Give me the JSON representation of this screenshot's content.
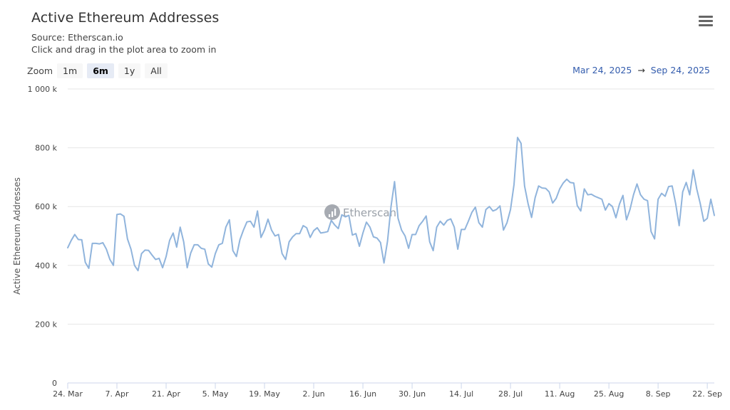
{
  "header": {
    "title": "Active Ethereum Addresses",
    "source": "Source: Etherscan.io",
    "hint": "Click and drag in the plot area to zoom in",
    "menu_icon": "hamburger-menu-icon"
  },
  "zoom": {
    "label": "Zoom",
    "buttons": [
      "1m",
      "6m",
      "1y",
      "All"
    ],
    "selected": "6m"
  },
  "range": {
    "from": "Mar 24, 2025",
    "arrow": "→",
    "to": "Sep 24, 2025"
  },
  "watermark": "Etherscan",
  "chart_data": {
    "type": "line",
    "ylabel": "Active Ethereum Addresses",
    "ylim": [
      0,
      1000000
    ],
    "yticks": [
      {
        "v": 0,
        "label": "0"
      },
      {
        "v": 200000,
        "label": "200 k"
      },
      {
        "v": 400000,
        "label": "400 k"
      },
      {
        "v": 600000,
        "label": "600 k"
      },
      {
        "v": 800000,
        "label": "800 k"
      },
      {
        "v": 1000000,
        "label": "1 000 k"
      }
    ],
    "xlim": [
      "2025-03-24",
      "2025-09-24"
    ],
    "xticks": [
      {
        "date": "2025-03-24",
        "label": "24. Mar"
      },
      {
        "date": "2025-04-07",
        "label": "7. Apr"
      },
      {
        "date": "2025-04-21",
        "label": "21. Apr"
      },
      {
        "date": "2025-05-05",
        "label": "5. May"
      },
      {
        "date": "2025-05-19",
        "label": "19. May"
      },
      {
        "date": "2025-06-02",
        "label": "2. Jun"
      },
      {
        "date": "2025-06-16",
        "label": "16. Jun"
      },
      {
        "date": "2025-06-30",
        "label": "30. Jun"
      },
      {
        "date": "2025-07-14",
        "label": "14. Jul"
      },
      {
        "date": "2025-07-28",
        "label": "28. Jul"
      },
      {
        "date": "2025-08-11",
        "label": "11. Aug"
      },
      {
        "date": "2025-08-25",
        "label": "25. Aug"
      },
      {
        "date": "2025-09-08",
        "label": "8. Sep"
      },
      {
        "date": "2025-09-22",
        "label": "22. Sep"
      }
    ],
    "grid": true,
    "series": [
      {
        "color": "#90b4dc",
        "start": "2025-03-24",
        "values": [
          460000,
          485000,
          505000,
          488000,
          487000,
          410000,
          390000,
          475000,
          475000,
          473000,
          477000,
          455000,
          420000,
          400000,
          573000,
          575000,
          567000,
          490000,
          455000,
          400000,
          382000,
          440000,
          452000,
          451000,
          435000,
          420000,
          424000,
          392000,
          430000,
          485000,
          510000,
          462000,
          530000,
          480000,
          392000,
          442000,
          470000,
          470000,
          458000,
          455000,
          405000,
          394000,
          440000,
          470000,
          475000,
          530000,
          555000,
          450000,
          430000,
          487000,
          520000,
          548000,
          550000,
          530000,
          585000,
          495000,
          520000,
          557000,
          520000,
          500000,
          505000,
          440000,
          420000,
          480000,
          497000,
          508000,
          508000,
          535000,
          528000,
          495000,
          518000,
          528000,
          510000,
          512000,
          515000,
          553000,
          537000,
          525000,
          572000,
          565000,
          570000,
          503000,
          508000,
          465000,
          510000,
          547000,
          530000,
          497000,
          493000,
          478000,
          408000,
          482000,
          600000,
          685000,
          560000,
          520000,
          500000,
          458000,
          505000,
          505000,
          535000,
          550000,
          568000,
          480000,
          450000,
          530000,
          550000,
          537000,
          553000,
          558000,
          530000,
          455000,
          522000,
          522000,
          550000,
          580000,
          598000,
          545000,
          530000,
          590000,
          600000,
          585000,
          590000,
          602000,
          520000,
          545000,
          590000,
          675000,
          835000,
          815000,
          670000,
          610000,
          563000,
          630000,
          670000,
          663000,
          662000,
          650000,
          612000,
          628000,
          660000,
          680000,
          693000,
          682000,
          680000,
          603000,
          585000,
          660000,
          640000,
          642000,
          635000,
          630000,
          625000,
          588000,
          610000,
          600000,
          562000,
          608000,
          638000,
          555000,
          590000,
          640000,
          677000,
          640000,
          625000,
          620000,
          515000,
          490000,
          625000,
          645000,
          635000,
          668000,
          670000,
          610000,
          535000,
          650000,
          682000,
          640000,
          725000,
          660000,
          610000,
          550000,
          560000,
          625000,
          570000
        ]
      }
    ]
  }
}
